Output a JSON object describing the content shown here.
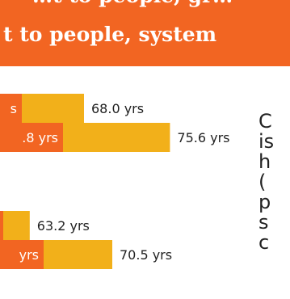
{
  "banner": {
    "line1": "…t to people, gr…",
    "line2": "t to people, system"
  },
  "side_text": "C\nis\nh\n(\np\ns\nc",
  "colors": {
    "banner": "#f26522",
    "segment_a": "#f26522",
    "segment_b": "#f2b01a",
    "text": "#222222",
    "segment_label": "#ffffff"
  },
  "chart_data": {
    "type": "bar",
    "orientation": "horizontal",
    "stacked": true,
    "title": "",
    "xlabel": "",
    "ylabel": "",
    "bars": [
      {
        "segment_a_label": "s",
        "total": 68.0,
        "total_label": "68.0 yrs"
      },
      {
        "segment_a_label": ".8 yrs",
        "total": 75.6,
        "total_label": "75.6 yrs"
      },
      {
        "segment_a_label": "",
        "total": 63.2,
        "total_label": "63.2 yrs"
      },
      {
        "segment_a_label": "yrs",
        "total": 70.5,
        "total_label": "70.5 yrs"
      }
    ]
  }
}
